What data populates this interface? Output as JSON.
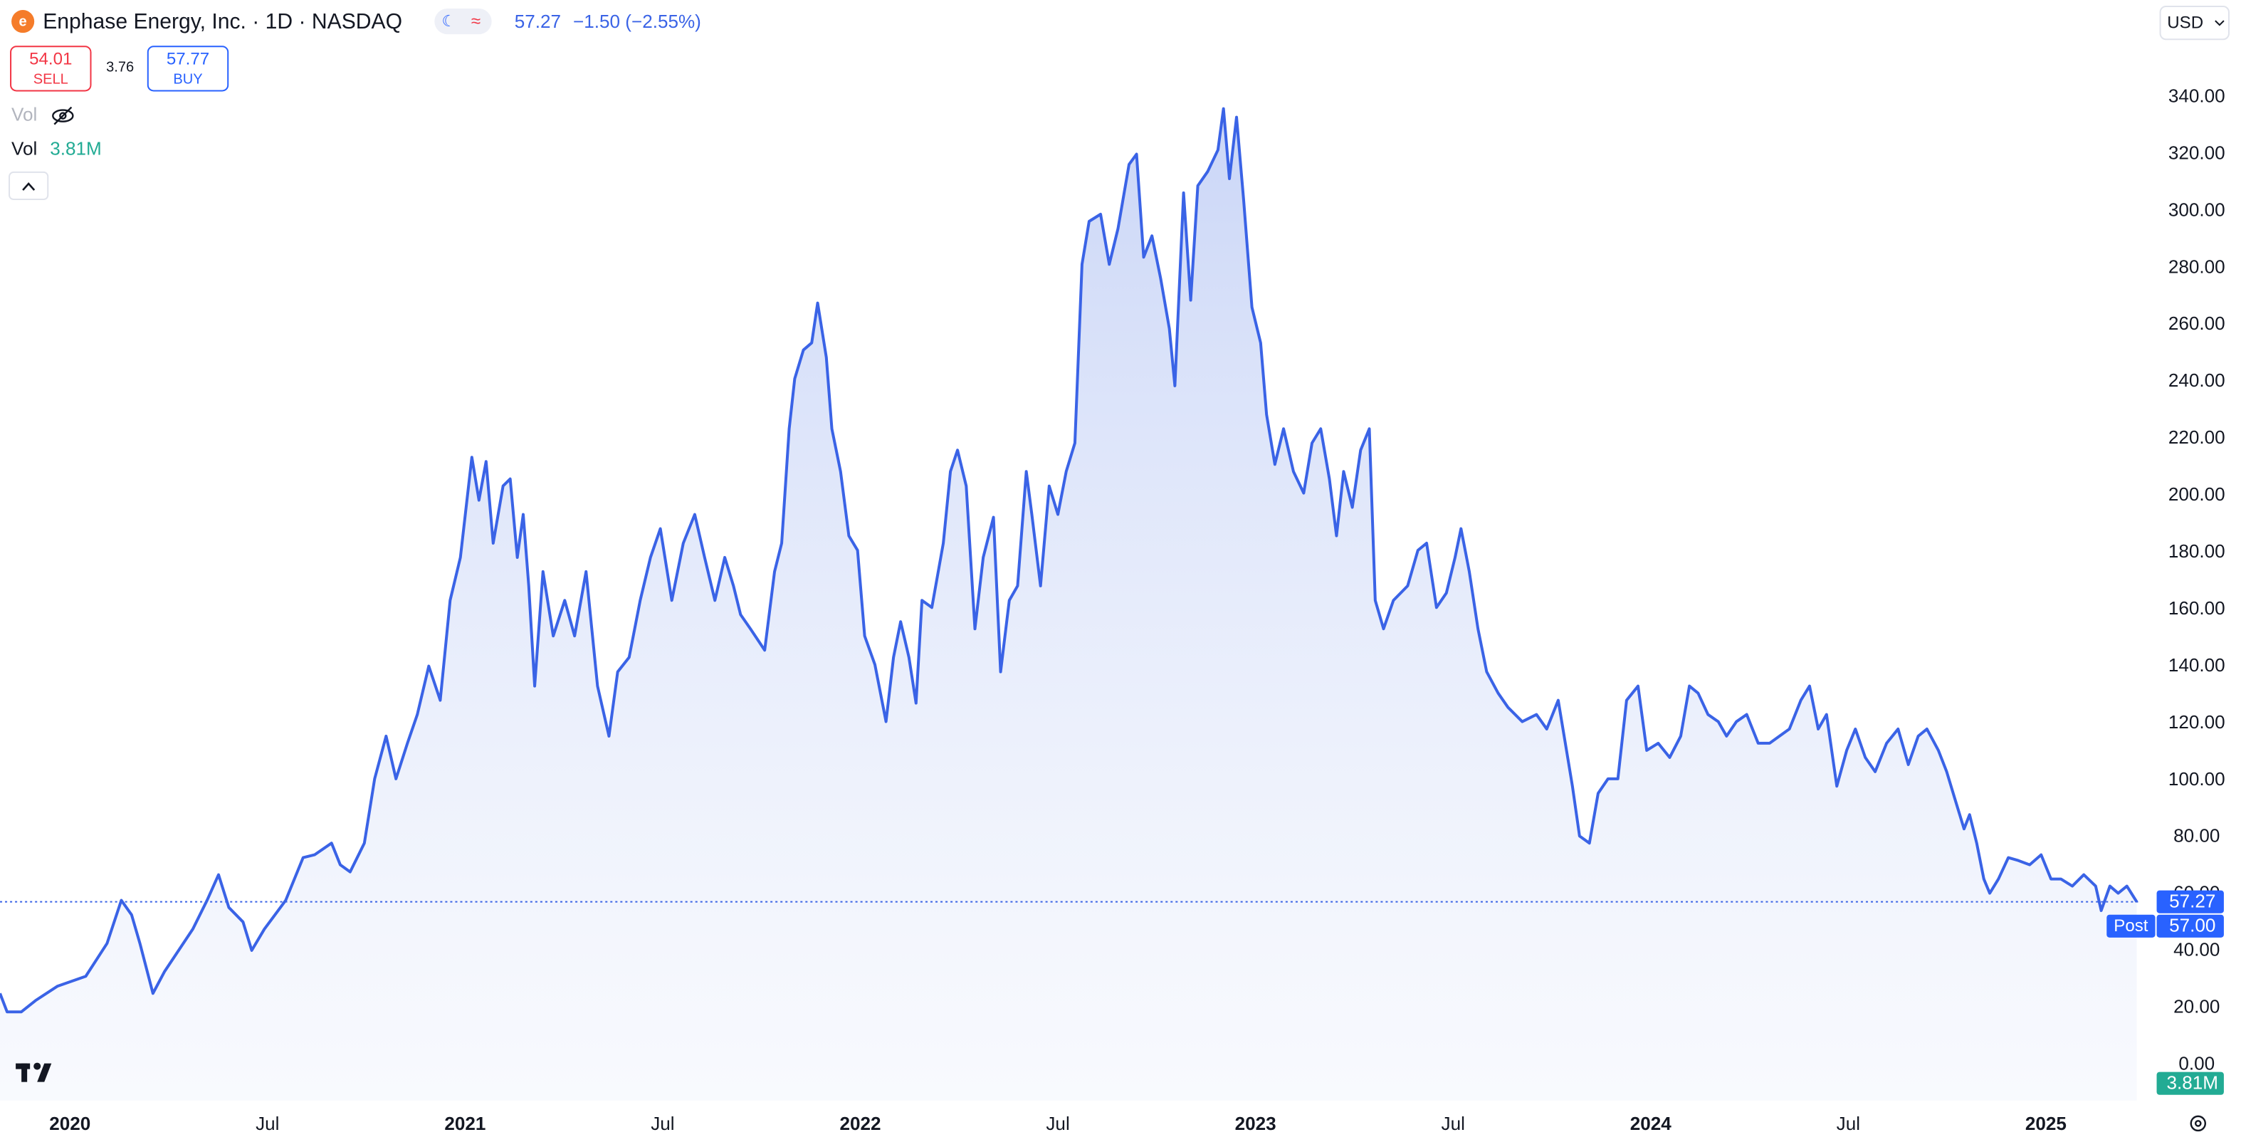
{
  "header": {
    "title": "Enphase Energy, Inc. · 1D · NASDAQ",
    "change": "−1.50 (−2.55%)",
    "sell": 54.01,
    "sell_label": "SELL",
    "spread": 3.76,
    "buy": 57.77,
    "buy_label": "BUY",
    "vol_hidden_label": "Vol",
    "vol_label": "Vol",
    "volume": "3.81M",
    "currency": "USD"
  },
  "chart_data": {
    "type": "area",
    "color": "#3a63e6",
    "x": [
      2019.823,
      2019.841,
      2019.877,
      2019.913,
      2019.968,
      2020.04,
      2020.094,
      2020.13,
      2020.156,
      2020.177,
      2020.21,
      2020.239,
      2020.275,
      2020.311,
      2020.347,
      2020.376,
      2020.402,
      2020.438,
      2020.46,
      2020.492,
      2020.546,
      2020.59,
      2020.619,
      2020.662,
      2020.684,
      2020.709,
      2020.745,
      2020.771,
      2020.8,
      2020.825,
      2020.854,
      2020.879,
      2020.908,
      2020.937,
      2020.962,
      2020.988,
      2021.017,
      2021.035,
      2021.053,
      2021.071,
      2021.096,
      2021.114,
      2021.132,
      2021.147,
      2021.161,
      2021.176,
      2021.197,
      2021.223,
      2021.252,
      2021.277,
      2021.306,
      2021.335,
      2021.364,
      2021.386,
      2021.415,
      2021.443,
      2021.469,
      2021.494,
      2021.523,
      2021.552,
      2021.581,
      2021.606,
      2021.632,
      2021.657,
      2021.679,
      2021.697,
      2021.722,
      2021.758,
      2021.783,
      2021.801,
      2021.82,
      2021.834,
      2021.856,
      2021.877,
      2021.892,
      2021.914,
      2021.928,
      2021.95,
      2021.971,
      2021.993,
      2022.011,
      2022.037,
      2022.065,
      2022.084,
      2022.102,
      2022.123,
      2022.141,
      2022.156,
      2022.181,
      2022.21,
      2022.228,
      2022.246,
      2022.268,
      2022.29,
      2022.311,
      2022.337,
      2022.355,
      2022.377,
      2022.398,
      2022.42,
      2022.434,
      2022.456,
      2022.478,
      2022.5,
      2022.521,
      2022.543,
      2022.561,
      2022.579,
      2022.608,
      2022.63,
      2022.652,
      2022.68,
      2022.699,
      2022.717,
      2022.738,
      2022.76,
      2022.782,
      2022.796,
      2022.818,
      2022.836,
      2022.854,
      2022.879,
      2022.905,
      2022.919,
      2022.934,
      2022.952,
      2022.97,
      2022.991,
      2023.013,
      2023.028,
      2023.049,
      2023.071,
      2023.096,
      2023.122,
      2023.143,
      2023.165,
      2023.187,
      2023.205,
      2023.223,
      2023.245,
      2023.266,
      2023.288,
      2023.303,
      2023.324,
      2023.349,
      2023.385,
      2023.411,
      2023.433,
      2023.458,
      2023.483,
      2023.505,
      2023.52,
      2023.541,
      2023.563,
      2023.585,
      2023.614,
      2023.639,
      2023.675,
      2023.711,
      2023.737,
      2023.766,
      2023.784,
      2023.802,
      2023.82,
      2023.845,
      2023.867,
      2023.892,
      2023.917,
      2023.939,
      2023.968,
      2023.99,
      2024.019,
      2024.048,
      2024.076,
      2024.098,
      2024.12,
      2024.145,
      2024.171,
      2024.192,
      2024.217,
      2024.243,
      2024.272,
      2024.301,
      2024.326,
      2024.351,
      2024.38,
      2024.402,
      2024.424,
      2024.445,
      2024.471,
      2024.496,
      2024.518,
      2024.543,
      2024.568,
      2024.597,
      2024.626,
      2024.652,
      2024.677,
      2024.699,
      2024.728,
      2024.749,
      2024.771,
      2024.793,
      2024.807,
      2024.825,
      2024.843,
      2024.858,
      2024.88,
      2024.905,
      2024.93,
      2024.959,
      2024.988,
      2025.013,
      2025.038,
      2025.067,
      2025.096,
      2025.126,
      2025.14,
      2025.162,
      2025.183,
      2025.205,
      2025.23
    ],
    "values": [
      25.1,
      18.6,
      18.6,
      22.6,
      27.6,
      31.1,
      42.7,
      57.8,
      52.7,
      42.7,
      25.1,
      32.7,
      40.2,
      47.7,
      57.8,
      66.8,
      55.3,
      50.2,
      40.2,
      47.7,
      57.8,
      72.8,
      73.8,
      77.9,
      70.3,
      67.8,
      77.9,
      100.5,
      115.5,
      100.5,
      113.0,
      123.1,
      140.1,
      128.1,
      163.2,
      178.3,
      213.5,
      198.4,
      212.0,
      183.3,
      203.4,
      205.9,
      178.3,
      193.4,
      168.3,
      133.1,
      173.3,
      150.7,
      163.2,
      150.7,
      173.3,
      133.1,
      115.5,
      138.1,
      143.2,
      163.2,
      178.3,
      188.4,
      163.2,
      183.3,
      193.4,
      178.3,
      163.2,
      178.3,
      168.3,
      158.2,
      153.2,
      145.7,
      173.3,
      183.3,
      223.5,
      241.1,
      251.2,
      253.7,
      267.7,
      248.6,
      223.5,
      208.5,
      185.9,
      180.8,
      150.7,
      140.6,
      120.6,
      143.2,
      155.7,
      143.2,
      127.1,
      163.2,
      160.7,
      183.3,
      208.5,
      216.0,
      203.4,
      153.2,
      178.3,
      192.4,
      138.1,
      163.2,
      168.3,
      208.5,
      193.4,
      168.3,
      203.4,
      193.4,
      208.5,
      218.5,
      281.3,
      296.4,
      298.9,
      281.3,
      293.8,
      316.4,
      320.0,
      283.8,
      291.3,
      276.3,
      258.7,
      238.6,
      306.4,
      268.7,
      308.9,
      313.9,
      321.5,
      336.0,
      311.4,
      333.0,
      303.9,
      266.2,
      253.7,
      228.5,
      211.0,
      223.5,
      208.5,
      200.9,
      218.5,
      223.5,
      205.9,
      185.9,
      208.5,
      195.9,
      216.0,
      223.5,
      163.2,
      153.2,
      163.2,
      168.3,
      180.8,
      183.3,
      160.7,
      165.8,
      178.3,
      188.4,
      173.3,
      153.2,
      138.1,
      130.6,
      125.6,
      120.6,
      123.1,
      118.0,
      128.1,
      113.0,
      97.9,
      80.4,
      77.9,
      95.4,
      100.5,
      100.5,
      128.1,
      133.1,
      110.5,
      113.0,
      108.0,
      115.5,
      133.1,
      130.6,
      123.1,
      120.6,
      115.5,
      120.6,
      123.1,
      113.0,
      113.0,
      115.5,
      118.0,
      128.1,
      133.1,
      118.0,
      123.1,
      97.9,
      110.5,
      118.0,
      108.0,
      103.0,
      113.0,
      118.0,
      105.5,
      115.5,
      118.0,
      110.5,
      103.0,
      92.9,
      82.9,
      87.9,
      77.9,
      65.3,
      60.3,
      65.3,
      72.8,
      71.8,
      70.3,
      73.8,
      65.3,
      65.3,
      62.8,
      66.8,
      62.8,
      54.2,
      62.8,
      60.3,
      62.8,
      57.27
    ],
    "xlim": [
      2019.823,
      2025.237
    ],
    "xticks": [
      2020,
      {
        "value": 2020.5,
        "label": "Jul"
      },
      2021,
      {
        "value": 2021.5,
        "label": "Jul"
      },
      2022,
      {
        "value": 2022.5,
        "label": "Jul"
      },
      2023,
      {
        "value": 2023.5,
        "label": "Jul"
      },
      2024,
      {
        "value": 2024.5,
        "label": "Jul"
      },
      2025
    ],
    "ylim": [
      -12.56,
      374.18
    ],
    "yticks": [
      {
        "value": 0,
        "label": "0.00"
      },
      {
        "value": 20,
        "label": "20.00"
      },
      {
        "value": 40,
        "label": "40.00"
      },
      {
        "value": 60,
        "label": "60.00"
      },
      {
        "value": 80,
        "label": "80.00"
      },
      {
        "value": 100,
        "label": "100.00"
      },
      {
        "value": 120,
        "label": "120.00"
      },
      {
        "value": 140,
        "label": "140.00"
      },
      {
        "value": 160,
        "label": "160.00"
      },
      {
        "value": 180,
        "label": "180.00"
      },
      {
        "value": 200,
        "label": "200.00"
      },
      {
        "value": 220,
        "label": "220.00"
      },
      {
        "value": 240,
        "label": "240.00"
      },
      {
        "value": 260,
        "label": "260.00"
      },
      {
        "value": 280,
        "label": "280.00"
      },
      {
        "value": 300,
        "label": "300.00"
      },
      {
        "value": 320,
        "label": "320.00"
      },
      {
        "value": 340,
        "label": "340.00"
      }
    ],
    "grid": false,
    "last_price": 57.27,
    "post_label": "Post",
    "post_price": {
      "value": 57,
      "label": "57.00"
    }
  }
}
